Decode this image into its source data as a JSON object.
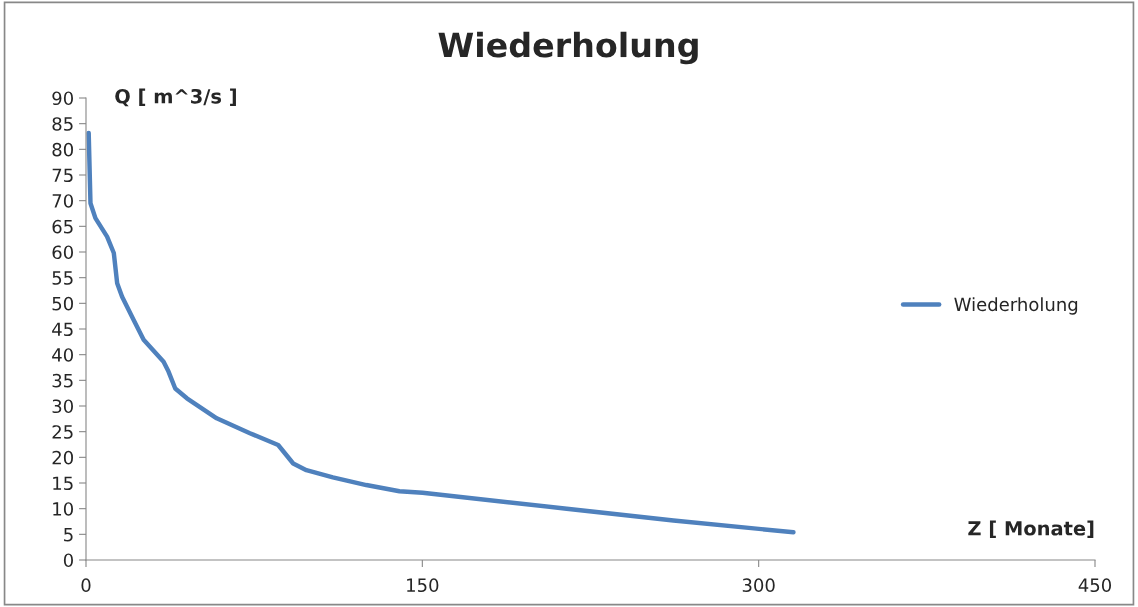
{
  "chart_data": {
    "type": "line",
    "title": "Wiederholung",
    "xlabel": "Z [ Monate]",
    "ylabel": "Q [ m^3/s ]",
    "xlim": [
      0,
      450
    ],
    "xticks": [
      0,
      150,
      300,
      450
    ],
    "ylim": [
      0,
      90
    ],
    "yticks": [
      0,
      5,
      10,
      15,
      20,
      25,
      30,
      35,
      40,
      45,
      50,
      55,
      60,
      65,
      70,
      75,
      80,
      85,
      90
    ],
    "grid": false,
    "legend": "right",
    "marker": "none",
    "line_style": "solid",
    "series": [
      {
        "name": "Wiederholung",
        "color": "#4f81bd",
        "x": [
          1.2,
          2,
          4.2,
          9.4,
          12.4,
          13.9,
          16.1,
          21.2,
          25.7,
          34.6,
          36.8,
          39.8,
          45,
          58.3,
          73.1,
          85.7,
          88.7,
          92.4,
          98.3,
          110.1,
          125,
          139.8,
          150.1,
          214.4,
          262,
          315.5
        ],
        "values": [
          83.2,
          69.5,
          66.6,
          63,
          59.8,
          53.9,
          51.3,
          46.8,
          42.9,
          38.6,
          36.7,
          33.4,
          31.5,
          27.6,
          24.7,
          22.4,
          20.8,
          18.8,
          17.5,
          16.1,
          14.6,
          13.4,
          13.1,
          10.0,
          7.7,
          5.4
        ]
      }
    ]
  }
}
